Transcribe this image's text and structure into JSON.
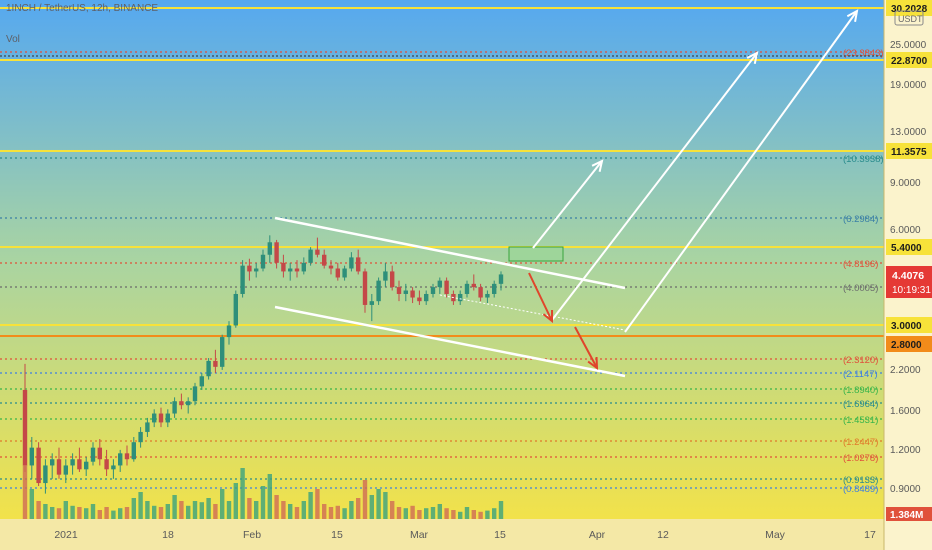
{
  "header": {
    "symbol": "1INCH / TetherUS, 12h, BINANCE",
    "vol_label": "Vol",
    "currency_badge": "USDT"
  },
  "colors": {
    "gradient_top": "#55a8f0",
    "gradient_mid": "#a9d4a2",
    "gradient_bottom": "#f2e24a",
    "candle_up": "#2e8f7a",
    "candle_down": "#c44848",
    "resistance_line": "#f7e23a",
    "channel_line": "#ffffff",
    "arrow_up": "#ffffff",
    "arrow_down": "#e0452b",
    "price_badge": "#e53935"
  },
  "chart_data": {
    "type": "candlestick",
    "scale": "log",
    "x_axis_labels": [
      "2021",
      "18",
      "Feb",
      "15",
      "Mar",
      "15",
      "Apr",
      "12",
      "May",
      "17"
    ],
    "y_axis_ticks": [
      "25.0000",
      "19.0000",
      "13.0000",
      "9.0000",
      "6.0000",
      "2.2000",
      "1.6000",
      "1.2000",
      "0.9000"
    ],
    "price_lines": [
      "30.2028",
      "22.8700",
      "11.3575",
      "5.4000",
      "3.0000",
      "2.8000"
    ],
    "fib_levels": [
      {
        "label": "(23.3843)",
        "color": "#e0513b"
      },
      {
        "label": "(10.3938)",
        "color": "#2a8c8c"
      },
      {
        "label": "(6.2984)",
        "color": "#3a7fa6"
      },
      {
        "label": "(4.8196)",
        "color": "#e0513b"
      },
      {
        "label": "(4.0005)",
        "color": "#6b6b6b"
      },
      {
        "label": "(2.3120)",
        "color": "#e0513b"
      },
      {
        "label": "(2.1147)",
        "color": "#3f7fe0"
      },
      {
        "label": "(1.8940)",
        "color": "#39b54a"
      },
      {
        "label": "(1.6964)",
        "color": "#2a8c8c"
      },
      {
        "label": "(1.4531)",
        "color": "#39b54a"
      },
      {
        "label": "(1.2447)",
        "color": "#e07a2b"
      },
      {
        "label": "(1.0278)",
        "color": "#e0513b"
      },
      {
        "label": "(0.9133)",
        "color": "#2a8c8c"
      },
      {
        "label": "(0.8489)",
        "color": "#3f7fe0"
      }
    ],
    "current_price": "4.4076",
    "countdown": "10:19:31",
    "volume_badge": "1.384M",
    "candles": [
      [
        1.85,
        2.25,
        1.0,
        1.05
      ],
      [
        1.05,
        1.3,
        0.95,
        1.2
      ],
      [
        1.2,
        1.25,
        0.9,
        0.92
      ],
      [
        0.92,
        1.1,
        0.85,
        1.05
      ],
      [
        1.05,
        1.15,
        0.95,
        1.1
      ],
      [
        1.1,
        1.2,
        0.95,
        0.98
      ],
      [
        0.98,
        1.1,
        0.92,
        1.05
      ],
      [
        1.05,
        1.15,
        0.98,
        1.1
      ],
      [
        1.1,
        1.2,
        1.0,
        1.02
      ],
      [
        1.02,
        1.12,
        0.97,
        1.08
      ],
      [
        1.08,
        1.25,
        1.05,
        1.2
      ],
      [
        1.2,
        1.28,
        1.05,
        1.1
      ],
      [
        1.1,
        1.18,
        0.97,
        1.02
      ],
      [
        1.02,
        1.1,
        0.95,
        1.05
      ],
      [
        1.05,
        1.18,
        1.0,
        1.15
      ],
      [
        1.15,
        1.22,
        1.05,
        1.1
      ],
      [
        1.1,
        1.3,
        1.08,
        1.25
      ],
      [
        1.25,
        1.4,
        1.2,
        1.35
      ],
      [
        1.35,
        1.5,
        1.3,
        1.45
      ],
      [
        1.45,
        1.6,
        1.4,
        1.55
      ],
      [
        1.55,
        1.62,
        1.4,
        1.45
      ],
      [
        1.45,
        1.6,
        1.4,
        1.55
      ],
      [
        1.55,
        1.75,
        1.5,
        1.7
      ],
      [
        1.7,
        1.8,
        1.6,
        1.65
      ],
      [
        1.65,
        1.75,
        1.55,
        1.7
      ],
      [
        1.7,
        1.95,
        1.65,
        1.9
      ],
      [
        1.9,
        2.1,
        1.85,
        2.05
      ],
      [
        2.05,
        2.35,
        2.0,
        2.3
      ],
      [
        2.3,
        2.5,
        2.1,
        2.2
      ],
      [
        2.2,
        2.8,
        2.15,
        2.75
      ],
      [
        2.75,
        3.1,
        2.6,
        3.0
      ],
      [
        3.0,
        3.9,
        2.95,
        3.8
      ],
      [
        3.8,
        4.9,
        3.7,
        4.7
      ],
      [
        4.7,
        4.95,
        4.2,
        4.5
      ],
      [
        4.5,
        4.8,
        4.3,
        4.6
      ],
      [
        4.6,
        5.3,
        4.5,
        5.1
      ],
      [
        5.1,
        5.9,
        4.8,
        5.6
      ],
      [
        5.6,
        5.7,
        4.6,
        4.8
      ],
      [
        4.8,
        5.1,
        4.3,
        4.5
      ],
      [
        4.5,
        4.8,
        4.2,
        4.6
      ],
      [
        4.6,
        4.9,
        4.3,
        4.5
      ],
      [
        4.5,
        5.0,
        4.4,
        4.8
      ],
      [
        4.8,
        5.4,
        4.7,
        5.3
      ],
      [
        5.3,
        5.8,
        5.0,
        5.1
      ],
      [
        5.1,
        5.3,
        4.6,
        4.7
      ],
      [
        4.7,
        4.9,
        4.4,
        4.6
      ],
      [
        4.6,
        4.8,
        4.2,
        4.3
      ],
      [
        4.3,
        4.7,
        4.2,
        4.6
      ],
      [
        4.6,
        5.2,
        4.5,
        5.0
      ],
      [
        5.0,
        5.3,
        4.4,
        4.5
      ],
      [
        4.5,
        4.6,
        3.3,
        3.5
      ],
      [
        3.5,
        3.8,
        3.1,
        3.6
      ],
      [
        3.6,
        4.3,
        3.5,
        4.2
      ],
      [
        4.2,
        4.8,
        4.0,
        4.5
      ],
      [
        4.5,
        4.7,
        3.9,
        4.0
      ],
      [
        4.0,
        4.2,
        3.6,
        3.8
      ],
      [
        3.8,
        4.1,
        3.6,
        3.9
      ],
      [
        3.9,
        4.0,
        3.55,
        3.7
      ],
      [
        3.7,
        3.9,
        3.5,
        3.6
      ],
      [
        3.6,
        3.9,
        3.5,
        3.8
      ],
      [
        3.8,
        4.1,
        3.7,
        4.0
      ],
      [
        4.0,
        4.3,
        3.8,
        4.2
      ],
      [
        4.2,
        4.3,
        3.7,
        3.8
      ],
      [
        3.8,
        3.9,
        3.5,
        3.6
      ],
      [
        3.6,
        3.9,
        3.5,
        3.8
      ],
      [
        3.8,
        4.2,
        3.7,
        4.1
      ],
      [
        4.1,
        4.4,
        3.9,
        4.0
      ],
      [
        4.0,
        4.1,
        3.6,
        3.7
      ],
      [
        3.7,
        3.9,
        3.55,
        3.8
      ],
      [
        3.8,
        4.2,
        3.7,
        4.1
      ],
      [
        4.1,
        4.5,
        3.9,
        4.4
      ]
    ],
    "volumes": [
      0.9,
      0.5,
      0.3,
      0.25,
      0.2,
      0.18,
      0.3,
      0.22,
      0.2,
      0.18,
      0.25,
      0.15,
      0.2,
      0.14,
      0.18,
      0.2,
      0.35,
      0.45,
      0.3,
      0.22,
      0.2,
      0.25,
      0.4,
      0.3,
      0.22,
      0.3,
      0.28,
      0.35,
      0.25,
      0.5,
      0.3,
      0.6,
      0.85,
      0.35,
      0.3,
      0.55,
      0.75,
      0.4,
      0.3,
      0.25,
      0.2,
      0.3,
      0.45,
      0.5,
      0.25,
      0.2,
      0.22,
      0.18,
      0.3,
      0.35,
      0.65,
      0.4,
      0.5,
      0.45,
      0.3,
      0.2,
      0.18,
      0.22,
      0.15,
      0.18,
      0.2,
      0.25,
      0.18,
      0.15,
      0.12,
      0.2,
      0.15,
      0.12,
      0.14,
      0.18,
      0.3
    ],
    "channel_upper": [
      [
        0.2,
        6.0
      ],
      [
        0.62,
        3.75
      ]
    ],
    "channel_lower": [
      [
        0.2,
        2.85
      ],
      [
        0.62,
        2.0
      ]
    ],
    "midline": [
      [
        0.4,
        3.6
      ],
      [
        0.62,
        3.0
      ]
    ],
    "target_box": {
      "low": 4.9,
      "high": 5.4
    }
  }
}
